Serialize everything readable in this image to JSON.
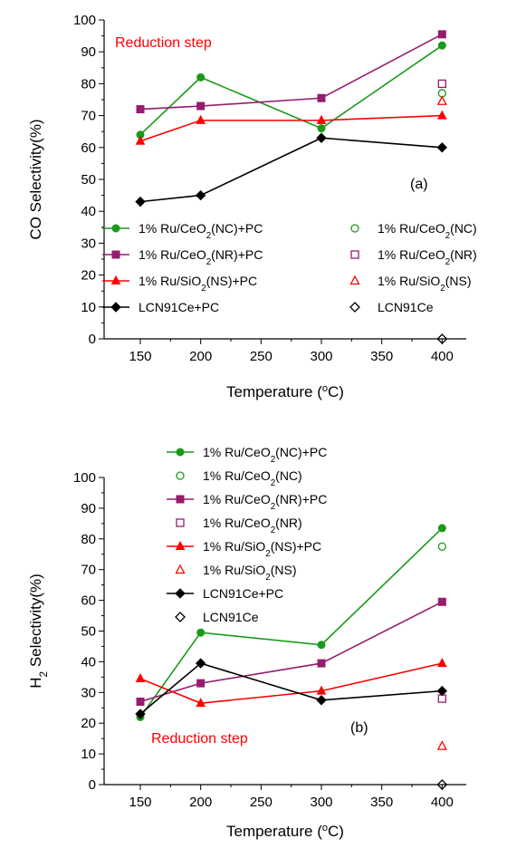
{
  "chart_data": [
    {
      "type": "line",
      "panel_label": "(a)",
      "annotation": "Reduction step",
      "xlabel": "Temperature (°C)",
      "ylabel": "CO Selectivity(%)",
      "xlim": [
        120,
        420
      ],
      "ylim": [
        0,
        100
      ],
      "xticks": [
        150,
        200,
        250,
        300,
        350,
        400
      ],
      "yticks": [
        0,
        10,
        20,
        30,
        40,
        50,
        60,
        70,
        80,
        90,
        100
      ],
      "legend_position": "bottom",
      "series": [
        {
          "name": "1% Ru/CeO2(NC)+PC",
          "color": "#1a9a1a",
          "marker": "circle",
          "filled": true,
          "line": true,
          "x": [
            150,
            200,
            300,
            400
          ],
          "y": [
            64,
            82,
            66,
            92
          ]
        },
        {
          "name": "1% Ru/CeO2(NC)",
          "color": "#1a9a1a",
          "marker": "circle",
          "filled": false,
          "line": false,
          "x": [
            400
          ],
          "y": [
            77
          ]
        },
        {
          "name": "1% Ru/CeO2(NR)+PC",
          "color": "#951c6e",
          "marker": "square",
          "filled": true,
          "line": true,
          "x": [
            150,
            200,
            300,
            400
          ],
          "y": [
            72,
            73,
            75.5,
            95.5
          ]
        },
        {
          "name": "1% Ru/CeO2(NR)",
          "color": "#951c6e",
          "marker": "square",
          "filled": false,
          "line": false,
          "x": [
            400
          ],
          "y": [
            80
          ]
        },
        {
          "name": "1% Ru/SiO2(NS)+PC",
          "color": "#ff0000",
          "marker": "triangle",
          "filled": true,
          "line": true,
          "x": [
            150,
            200,
            300,
            400
          ],
          "y": [
            62,
            68.5,
            68.5,
            70
          ]
        },
        {
          "name": "1% Ru/SiO2(NS)",
          "color": "#ff0000",
          "marker": "triangle",
          "filled": false,
          "line": false,
          "x": [
            400
          ],
          "y": [
            74.5
          ]
        },
        {
          "name": "LCN91Ce+PC",
          "color": "#000000",
          "marker": "diamond",
          "filled": true,
          "line": true,
          "x": [
            150,
            200,
            300,
            400
          ],
          "y": [
            43,
            45,
            63,
            60
          ]
        },
        {
          "name": "LCN91Ce",
          "color": "#000000",
          "marker": "diamond",
          "filled": false,
          "line": false,
          "x": [
            400
          ],
          "y": [
            0
          ]
        }
      ]
    },
    {
      "type": "line",
      "panel_label": "(b)",
      "annotation": "Reduction step",
      "xlabel": "Temperature (°C)",
      "ylabel": "H2 Selectivity(%)",
      "xlim": [
        120,
        420
      ],
      "ylim": [
        0,
        100
      ],
      "xticks": [
        150,
        200,
        250,
        300,
        350,
        400
      ],
      "yticks": [
        0,
        10,
        20,
        30,
        40,
        50,
        60,
        70,
        80,
        90,
        100
      ],
      "legend_position": "top",
      "series": [
        {
          "name": "1% Ru/CeO2(NC)+PC",
          "color": "#1a9a1a",
          "marker": "circle",
          "filled": true,
          "line": true,
          "x": [
            150,
            200,
            300,
            400
          ],
          "y": [
            22,
            49.5,
            45.5,
            83.5
          ]
        },
        {
          "name": "1% Ru/CeO2(NC)",
          "color": "#1a9a1a",
          "marker": "circle",
          "filled": false,
          "line": false,
          "x": [
            400
          ],
          "y": [
            77.5
          ]
        },
        {
          "name": "1% Ru/CeO2(NR)+PC",
          "color": "#951c6e",
          "marker": "square",
          "filled": true,
          "line": true,
          "x": [
            150,
            200,
            300,
            400
          ],
          "y": [
            27,
            33,
            39.5,
            59.5
          ]
        },
        {
          "name": "1% Ru/CeO2(NR)",
          "color": "#951c6e",
          "marker": "square",
          "filled": false,
          "line": false,
          "x": [
            400
          ],
          "y": [
            28
          ]
        },
        {
          "name": "1% Ru/SiO2(NS)+PC",
          "color": "#ff0000",
          "marker": "triangle",
          "filled": true,
          "line": true,
          "x": [
            150,
            200,
            300,
            400
          ],
          "y": [
            34.5,
            26.5,
            30.5,
            39.5
          ]
        },
        {
          "name": "1% Ru/SiO2(NS)",
          "color": "#ff0000",
          "marker": "triangle",
          "filled": false,
          "line": false,
          "x": [
            400
          ],
          "y": [
            12.5
          ]
        },
        {
          "name": "LCN91Ce+PC",
          "color": "#000000",
          "marker": "diamond",
          "filled": true,
          "line": true,
          "x": [
            150,
            200,
            300,
            400
          ],
          "y": [
            23,
            39.5,
            27.5,
            30.5
          ]
        },
        {
          "name": "LCN91Ce",
          "color": "#000000",
          "marker": "diamond",
          "filled": false,
          "line": false,
          "x": [
            400
          ],
          "y": [
            0
          ]
        }
      ]
    }
  ]
}
